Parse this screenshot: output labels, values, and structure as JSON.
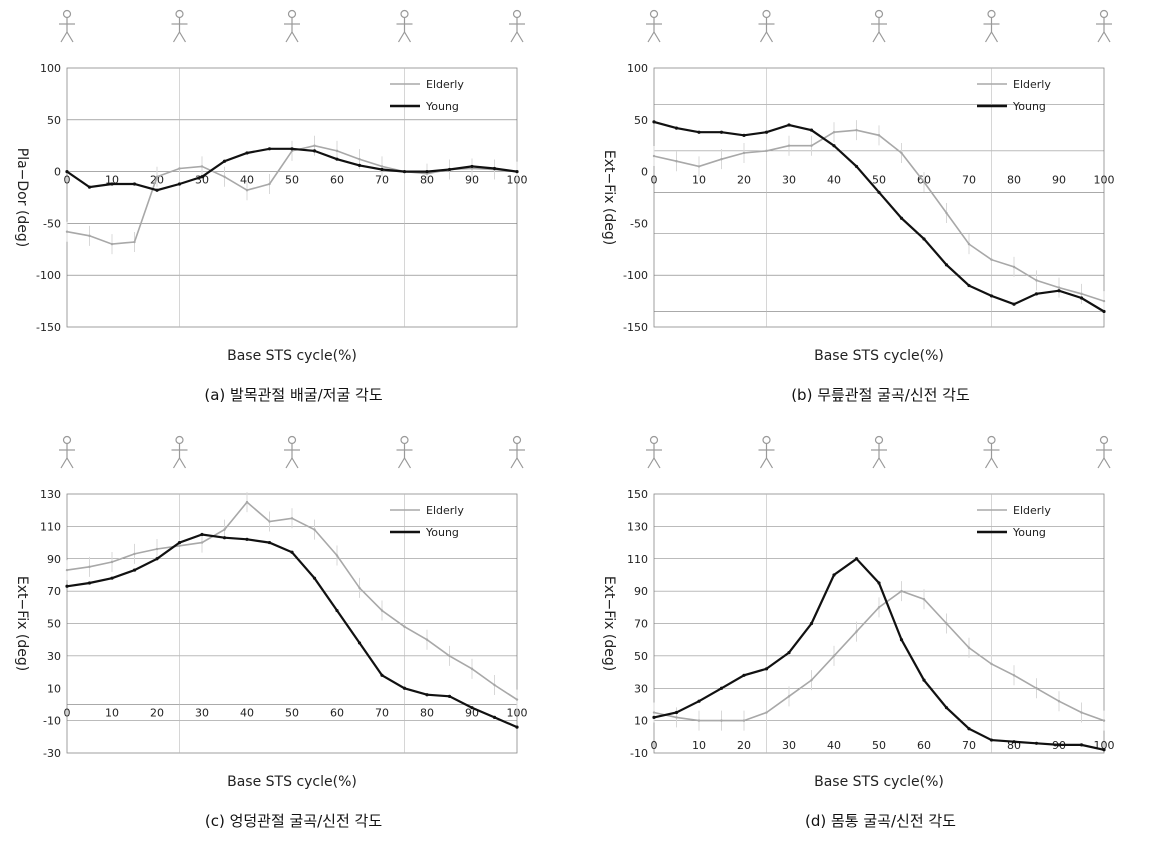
{
  "chart_data": [
    {
      "id": "a",
      "type": "line",
      "caption": "(a) 발목관절 배굴/저굴 각도",
      "xlabel": "Base STS cycle(%)",
      "ylabel": "Pla−Dor (deg)",
      "xlim": [
        0,
        100
      ],
      "ylim": [
        -150,
        100
      ],
      "xticks": [
        0,
        10,
        20,
        30,
        40,
        50,
        60,
        70,
        80,
        90,
        100
      ],
      "yticks": [
        -150,
        -100,
        -50,
        0,
        50,
        100
      ],
      "grid_lines_y": [
        -100,
        -50,
        0,
        50
      ],
      "grid_lines_x": [
        25,
        75
      ],
      "legend_position": "top-right",
      "series": [
        {
          "name": "Elderly",
          "color": "#a8a8a8",
          "x": [
            0,
            5,
            10,
            15,
            20,
            25,
            30,
            35,
            40,
            45,
            50,
            55,
            60,
            65,
            70,
            75,
            80,
            85,
            90,
            95,
            100
          ],
          "y": [
            -58,
            -62,
            -70,
            -68,
            -5,
            3,
            5,
            -5,
            -18,
            -12,
            20,
            25,
            20,
            12,
            5,
            0,
            -2,
            2,
            3,
            2,
            0
          ]
        },
        {
          "name": "Young",
          "color": "#111111",
          "x": [
            0,
            5,
            10,
            15,
            20,
            25,
            30,
            35,
            40,
            45,
            50,
            55,
            60,
            65,
            70,
            75,
            80,
            85,
            90,
            95,
            100
          ],
          "y": [
            0,
            -15,
            -12,
            -12,
            -18,
            -12,
            -5,
            10,
            18,
            22,
            22,
            20,
            12,
            6,
            2,
            0,
            0,
            2,
            5,
            3,
            0
          ]
        }
      ]
    },
    {
      "id": "b",
      "type": "line",
      "caption": "(b) 무릎관절 굴곡/신전 각도",
      "xlabel": "Base STS cycle(%)",
      "ylabel": "Ext−Fix (deg)",
      "xlim": [
        0,
        100
      ],
      "ylim": [
        -150,
        100
      ],
      "xticks": [
        0,
        10,
        20,
        30,
        40,
        50,
        60,
        70,
        80,
        90,
        100
      ],
      "yticks": [
        -150,
        -100,
        -50,
        0,
        50,
        100
      ],
      "grid_lines_y": [
        65,
        20,
        -20,
        -60,
        -100,
        -135
      ],
      "grid_lines_x": [
        25,
        75
      ],
      "legend_position": "top-right",
      "series": [
        {
          "name": "Elderly",
          "color": "#a8a8a8",
          "x": [
            0,
            5,
            10,
            15,
            20,
            25,
            30,
            35,
            40,
            45,
            50,
            55,
            60,
            65,
            70,
            75,
            80,
            85,
            90,
            95,
            100
          ],
          "y": [
            15,
            10,
            5,
            12,
            18,
            20,
            25,
            25,
            38,
            40,
            35,
            18,
            -10,
            -40,
            -70,
            -85,
            -92,
            -105,
            -112,
            -118,
            -125
          ]
        },
        {
          "name": "Young",
          "color": "#111111",
          "x": [
            0,
            5,
            10,
            15,
            20,
            25,
            30,
            35,
            40,
            45,
            50,
            55,
            60,
            65,
            70,
            75,
            80,
            85,
            90,
            95,
            100
          ],
          "y": [
            48,
            42,
            38,
            38,
            35,
            38,
            45,
            40,
            25,
            5,
            -20,
            -45,
            -65,
            -90,
            -110,
            -120,
            -128,
            -118,
            -115,
            -122,
            -135
          ]
        }
      ]
    },
    {
      "id": "c",
      "type": "line",
      "caption": "(c) 엉덩관절 굴곡/신전 각도",
      "xlabel": "Base STS cycle(%)",
      "ylabel": "Ext−Fix (deg)",
      "xlim": [
        0,
        100
      ],
      "ylim": [
        -30,
        130
      ],
      "xticks": [
        0,
        10,
        20,
        30,
        40,
        50,
        60,
        70,
        80,
        90,
        100
      ],
      "yticks": [
        -30,
        -10,
        10,
        30,
        50,
        70,
        90,
        110,
        130
      ],
      "grid_lines_y": [
        110,
        90,
        70,
        50,
        30,
        0,
        -10
      ],
      "grid_lines_x": [
        25,
        75
      ],
      "legend_position": "top-right",
      "series": [
        {
          "name": "Elderly",
          "color": "#a8a8a8",
          "x": [
            0,
            5,
            10,
            15,
            20,
            25,
            30,
            35,
            40,
            45,
            50,
            55,
            60,
            65,
            70,
            75,
            80,
            85,
            90,
            95,
            100
          ],
          "y": [
            83,
            85,
            88,
            93,
            96,
            98,
            100,
            108,
            125,
            113,
            115,
            108,
            92,
            72,
            58,
            48,
            40,
            30,
            22,
            12,
            3
          ]
        },
        {
          "name": "Young",
          "color": "#111111",
          "x": [
            0,
            5,
            10,
            15,
            20,
            25,
            30,
            35,
            40,
            45,
            50,
            55,
            60,
            65,
            70,
            75,
            80,
            85,
            90,
            95,
            100
          ],
          "y": [
            73,
            75,
            78,
            83,
            90,
            100,
            105,
            103,
            102,
            100,
            94,
            78,
            58,
            38,
            18,
            10,
            6,
            5,
            -2,
            -8,
            -14
          ]
        }
      ]
    },
    {
      "id": "d",
      "type": "line",
      "caption": "(d) 몸통 굴곡/신전 각도",
      "xlabel": "Base STS cycle(%)",
      "ylabel": "Ext−Fix (deg)",
      "xlim": [
        0,
        100
      ],
      "ylim": [
        -10,
        150
      ],
      "xticks": [
        0,
        10,
        20,
        30,
        40,
        50,
        60,
        70,
        80,
        90,
        100
      ],
      "yticks": [
        -10,
        10,
        30,
        50,
        70,
        90,
        110,
        130,
        150
      ],
      "grid_lines_y": [
        130,
        110,
        90,
        70,
        50,
        30,
        10
      ],
      "grid_lines_x": [
        25,
        75
      ],
      "legend_position": "top-right",
      "series": [
        {
          "name": "Elderly",
          "color": "#a8a8a8",
          "x": [
            0,
            5,
            10,
            15,
            20,
            25,
            30,
            35,
            40,
            45,
            50,
            55,
            60,
            65,
            70,
            75,
            80,
            85,
            90,
            95,
            100
          ],
          "y": [
            15,
            12,
            10,
            10,
            10,
            15,
            25,
            35,
            50,
            65,
            80,
            90,
            85,
            70,
            55,
            45,
            38,
            30,
            22,
            15,
            10
          ]
        },
        {
          "name": "Young",
          "color": "#111111",
          "x": [
            0,
            5,
            10,
            15,
            20,
            25,
            30,
            35,
            40,
            45,
            50,
            55,
            60,
            65,
            70,
            75,
            80,
            85,
            90,
            95,
            100
          ],
          "y": [
            12,
            15,
            22,
            30,
            38,
            42,
            52,
            70,
            100,
            110,
            95,
            60,
            35,
            18,
            5,
            -2,
            -3,
            -4,
            -5,
            -5,
            -8
          ]
        }
      ]
    }
  ]
}
